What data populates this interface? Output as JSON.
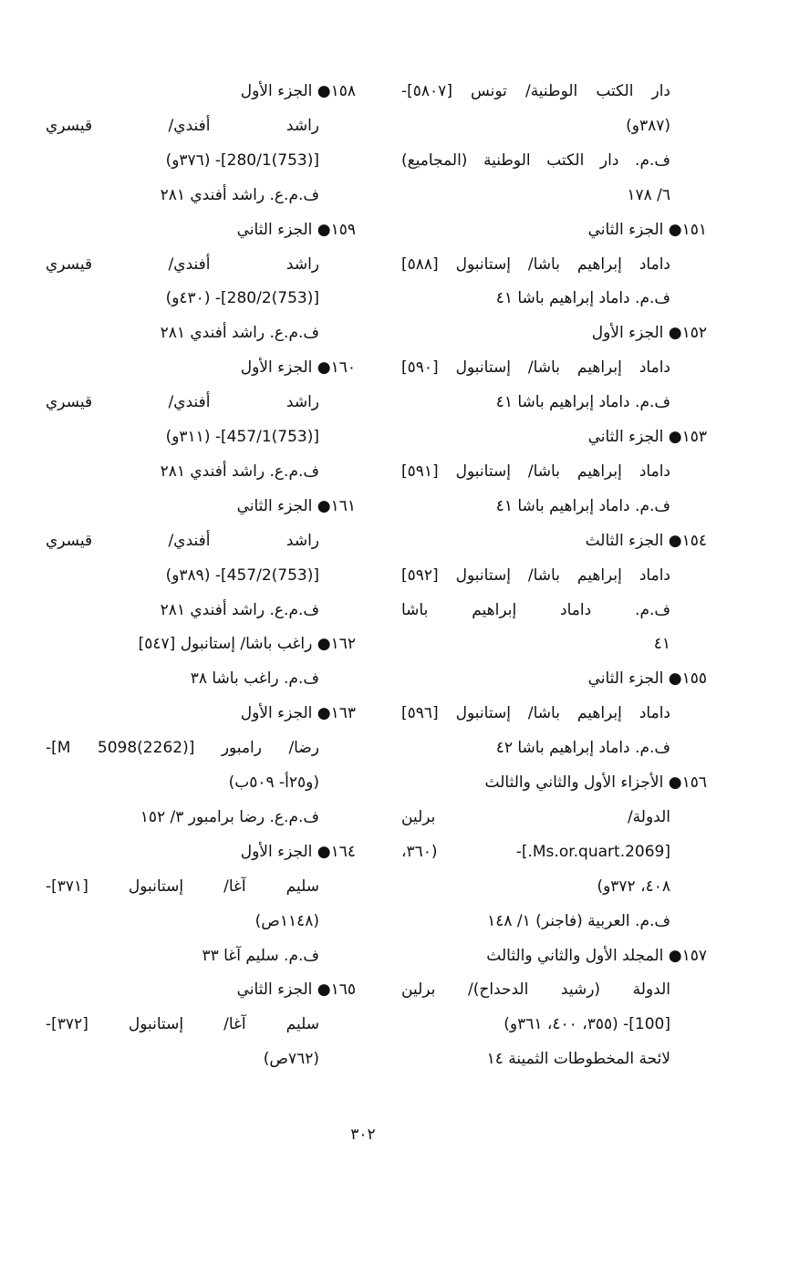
{
  "columns": [
    {
      "lines": [
        {
          "t": "دار الكتب الوطنية/ تونس [٥٨٠٧]-",
          "k": "j"
        },
        {
          "t": "(٣٨٧و)",
          "k": "c"
        },
        {
          "t": "ف.م. دار الكتب الوطنية (المجاميع)",
          "k": "j"
        },
        {
          "t": "٦/ ١٧٨",
          "k": "c"
        },
        {
          "t": "١٥١● الجزء الثاني",
          "k": "h"
        },
        {
          "t": "داماد إبراهيم باشا/ إستانبول [٥٨٨]",
          "k": "j"
        },
        {
          "t": "ف.م. داماد إبراهيم باشا ٤١",
          "k": "c"
        },
        {
          "t": "١٥٢● الجزء الأول",
          "k": "h"
        },
        {
          "t": "داماد إبراهيم باشا/ إستانبول [٥٩٠]",
          "k": "j"
        },
        {
          "t": "ف.م. داماد إبراهيم باشا ٤١",
          "k": "c"
        },
        {
          "t": "١٥٣● الجزء الثاني",
          "k": "h"
        },
        {
          "t": "داماد إبراهيم باشا/ إستانبول [٥٩١]",
          "k": "j"
        },
        {
          "t": "ف.م. داماد إبراهيم باشا ٤١",
          "k": "c"
        },
        {
          "t": "١٥٤● الجزء الثالث",
          "k": "h"
        },
        {
          "t": "داماد إبراهيم باشا/ إستانبول [٥٩٢]",
          "k": "j"
        },
        {
          "t": "ف.م. داماد إبراهيم باشا",
          "k": "j"
        },
        {
          "t": "٤١",
          "k": "c"
        },
        {
          "t": "١٥٥● الجزء الثاني",
          "k": "h"
        },
        {
          "t": "داماد إبراهيم باشا/ إستانبول [٥٩٦]",
          "k": "j"
        },
        {
          "t": "ف.م. داماد إبراهيم باشا ٤٢",
          "k": "c"
        },
        {
          "t": "١٥٦● الأجزاء الأول والثاني والثالث",
          "k": "h"
        },
        {
          "t": "الدولة/ برلين",
          "k": "j"
        },
        {
          "t": "[Ms.or.quart.2069.]- (٣٦٠،",
          "k": "j"
        },
        {
          "t": "٤٠٨، ٣٧٢و)",
          "k": "c"
        },
        {
          "t": "ف.م. العربية (فاجنر) ١/ ١٤٨",
          "k": "c"
        },
        {
          "t": "١٥٧● المجلد الأول والثاني والثالث",
          "k": "h"
        },
        {
          "t": "الدولة (رشيد الدحداح)/ برلين",
          "k": "j"
        },
        {
          "t": "[100]- (٣٥٥، ٤٠٠، ٣٦١و)",
          "k": "c"
        },
        {
          "t": "لائحة المخطوطات الثمينة ١٤",
          "k": "c"
        }
      ]
    },
    {
      "lines": [
        {
          "t": "١٥٨● الجزء الأول",
          "k": "h"
        },
        {
          "t": "راشد أفندي/ قيسري",
          "k": "j"
        },
        {
          "t": "[(753)280/1]- (٣٧٦و)",
          "k": "c"
        },
        {
          "t": "ف.م.ع. راشد أفندي ٢٨١",
          "k": "c"
        },
        {
          "t": "١٥٩● الجزء الثاني",
          "k": "h"
        },
        {
          "t": "راشد أفندي/ قيسري",
          "k": "j"
        },
        {
          "t": "[(753)280/2]- (٤٣٠و)",
          "k": "c"
        },
        {
          "t": "ف.م.ع. راشد أفندي ٢٨١",
          "k": "c"
        },
        {
          "t": "١٦٠● الجزء الأول",
          "k": "h"
        },
        {
          "t": "راشد أفندي/ قيسري",
          "k": "j"
        },
        {
          "t": "[(753)457/1]- (٣١١و)",
          "k": "c"
        },
        {
          "t": "ف.م.ع. راشد أفندي ٢٨١",
          "k": "c"
        },
        {
          "t": "١٦١● الجزء الثاني",
          "k": "h"
        },
        {
          "t": "راشد أفندي/ قيسري",
          "k": "j"
        },
        {
          "t": "[(753)457/2]- (٣٨٩و)",
          "k": "c"
        },
        {
          "t": "ف.م.ع. راشد أفندي ٢٨١",
          "k": "c"
        },
        {
          "t": "١٦٢● راغب باشا/ إستانبول [٥٤٧]",
          "k": "h"
        },
        {
          "t": "ف.م. راغب باشا ٣٨",
          "k": "c"
        },
        {
          "t": "١٦٣● الجزء الأول",
          "k": "h"
        },
        {
          "t": "رضا/ رامبور [M 5098(2262)]-",
          "k": "j"
        },
        {
          "t": "(و٢٥أ- ٥٠٩ب)",
          "k": "c"
        },
        {
          "t": "ف.م.ع. رضا برامبور ٣/ ١٥٢",
          "k": "c"
        },
        {
          "t": "١٦٤● الجزء الأول",
          "k": "h"
        },
        {
          "t": "سليم آغا/ إستانبول [٣٧١]-",
          "k": "j"
        },
        {
          "t": "(١١٤٨ص)",
          "k": "c"
        },
        {
          "t": "ف.م. سليم آغا ٣٣",
          "k": "c"
        },
        {
          "t": "١٦٥● الجزء الثاني",
          "k": "h"
        },
        {
          "t": "سليم آغا/ إستانبول [٣٧٢]-",
          "k": "j"
        },
        {
          "t": "(٧٦٢ص)",
          "k": "c"
        }
      ]
    }
  ],
  "page_number": "٣٠٢"
}
